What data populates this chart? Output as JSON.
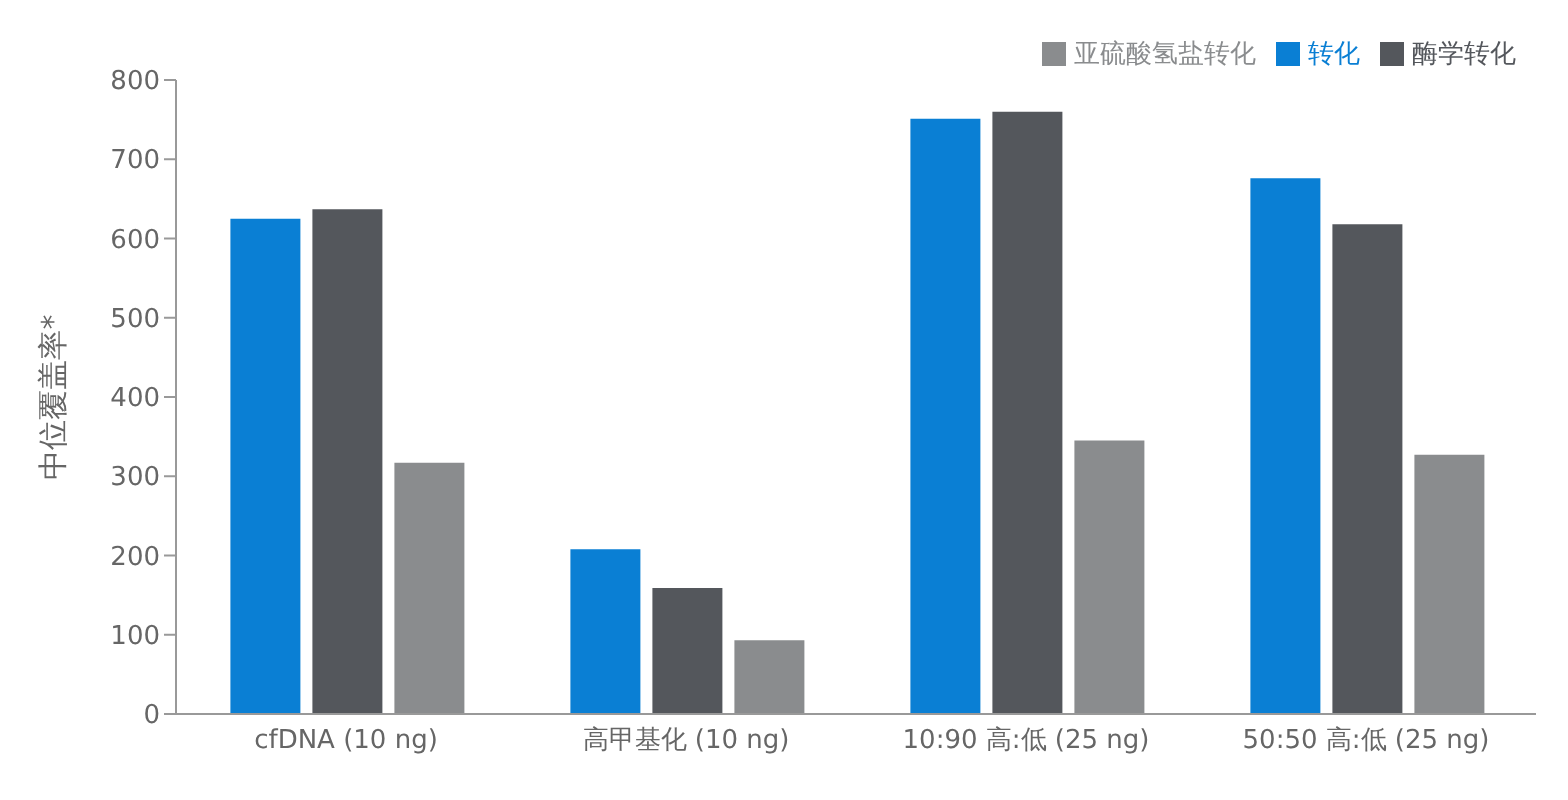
{
  "chart_data": {
    "type": "bar",
    "ylabel": "中位覆盖率*",
    "categories": [
      "cfDNA (10 ng)",
      "高甲基化 (10 ng)",
      "10:90 高:低 (25 ng)",
      "50:50 高:低 (25 ng)"
    ],
    "series": [
      {
        "name": "转化",
        "color": "#0a7fd4",
        "values": [
          625,
          208,
          751,
          676
        ]
      },
      {
        "name": "酶学转化",
        "color": "#54575c",
        "values": [
          637,
          159,
          760,
          618
        ]
      },
      {
        "name": "亚硫酸氢盐转化",
        "color": "#8a8c8e",
        "values": [
          317,
          93,
          345,
          327
        ]
      }
    ],
    "ylim": [
      0,
      800
    ],
    "yticks": [
      0,
      100,
      200,
      300,
      400,
      500,
      600,
      700,
      800
    ],
    "legend": "top right",
    "grid": false
  }
}
